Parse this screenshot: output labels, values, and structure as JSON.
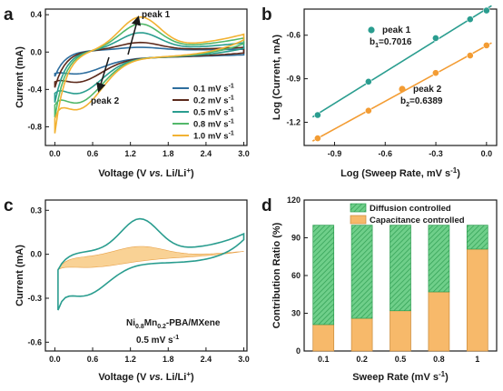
{
  "panels": {
    "a": {
      "letter": "a"
    },
    "b": {
      "letter": "b"
    },
    "c": {
      "letter": "c"
    },
    "d": {
      "letter": "d"
    }
  },
  "chart_data": [
    {
      "id": "a",
      "type": "line",
      "xlabel_pre": "Voltage (V ",
      "xlabel_vs": "vs.",
      "xlabel_post": " Li/Li",
      "xlabel_sup": "+",
      "xlabel_close": ")",
      "ylabel": "Current (mA)",
      "xlim": [
        -0.15,
        3.05
      ],
      "ylim": [
        -1.0,
        0.46
      ],
      "xticks": [
        "0.0",
        "0.6",
        "1.2",
        "1.8",
        "2.4",
        "3.0"
      ],
      "yticks": [
        "0.4",
        "0.0",
        "-0.4",
        "-0.8"
      ],
      "legend_position": "bottom-right",
      "annotations": [
        {
          "text": "peak 1"
        },
        {
          "text": "peak 2"
        }
      ],
      "series": [
        {
          "name": "0.1 mV s",
          "sup": "-1",
          "color": "#2e6e9e",
          "peak_ox": 0.05,
          "peak_red": -0.24,
          "end_high": 0.03,
          "start_low": -0.28
        },
        {
          "name": "0.2 mV s",
          "sup": "-1",
          "color": "#5c2a1c",
          "peak_ox": 0.1,
          "peak_red": -0.33,
          "end_high": 0.05,
          "start_low": -0.4
        },
        {
          "name": "0.5 mV s",
          "sup": "-1",
          "color": "#2a9d8f",
          "peak_ox": 0.2,
          "peak_red": -0.45,
          "end_high": 0.1,
          "start_low": -0.56
        },
        {
          "name": "0.8 mV s",
          "sup": "-1",
          "color": "#52b86a",
          "peak_ox": 0.29,
          "peak_red": -0.55,
          "end_high": 0.15,
          "start_low": -0.72
        },
        {
          "name": "1.0 mV s",
          "sup": "-1",
          "color": "#f2b233",
          "peak_ox": 0.36,
          "peak_red": -0.62,
          "end_high": 0.19,
          "start_low": -0.89
        }
      ]
    },
    {
      "id": "b",
      "type": "scatter",
      "xlabel": "Log (Sweep Rate, mV s",
      "xlabel_sup": "-1",
      "xlabel_close": ")",
      "ylabel": "Log (Current, mA)",
      "xlim": [
        -1.08,
        0.06
      ],
      "ylim": [
        -1.36,
        -0.42
      ],
      "xticks": [
        "-0.9",
        "-0.6",
        "-0.3",
        "0.0"
      ],
      "yticks": [
        "-0.6",
        "-0.9",
        "-1.2"
      ],
      "series": [
        {
          "name": "peak 1",
          "color": "#2a9d8f",
          "b_label": "b",
          "b_sub": "1",
          "b_value": "=0.7016",
          "x": [
            -1.0,
            -0.699,
            -0.301,
            -0.097,
            0.0
          ],
          "y": [
            -1.15,
            -0.92,
            -0.62,
            -0.49,
            -0.43
          ]
        },
        {
          "name": "peak 2",
          "color": "#f39c33",
          "b_label": "b",
          "b_sub": "2",
          "b_value": "=0.6389",
          "x": [
            -1.0,
            -0.699,
            -0.301,
            -0.097,
            0.0
          ],
          "y": [
            -1.31,
            -1.12,
            -0.86,
            -0.74,
            -0.67
          ]
        }
      ]
    },
    {
      "id": "c",
      "type": "line",
      "xlabel_pre": "Voltage (V ",
      "xlabel_vs": "vs.",
      "xlabel_post": " Li/Li",
      "xlabel_sup": "+",
      "xlabel_close": ")",
      "ylabel": "Current (mA)",
      "xlim": [
        -0.15,
        3.05
      ],
      "ylim": [
        -0.66,
        0.37
      ],
      "xticks": [
        "0.0",
        "0.6",
        "1.2",
        "1.8",
        "2.4",
        "3.0"
      ],
      "yticks": [
        "0.3",
        "0.0",
        "-0.3",
        "-0.6"
      ],
      "label_material_pre": "Ni",
      "label_material_sub1": "0.8",
      "label_material_mid": "Mn",
      "label_material_sub2": "0.2",
      "label_material_post": "-PBA/MXene",
      "label_rate": "0.5 mV s",
      "label_rate_sup": "-1",
      "cv_color": "#2a9d8f",
      "fill_color": "#f7c77a"
    },
    {
      "id": "d",
      "type": "bar",
      "xlabel": "Sweep Rate (mV s",
      "xlabel_sup": "-1",
      "xlabel_close": ")",
      "ylabel": "Contribution Ratio (%)",
      "ylim": [
        0,
        120
      ],
      "yticks": [
        "0",
        "30",
        "60",
        "90",
        "120"
      ],
      "categories": [
        "0.1",
        "0.2",
        "0.5",
        "0.8",
        "1"
      ],
      "series": [
        {
          "name": "Capacitance controlled",
          "color": "#f7b96a",
          "values": [
            21,
            26,
            32,
            47,
            81
          ]
        },
        {
          "name": "Diffusion controlled",
          "color": "#5cc47a",
          "values": [
            79,
            74,
            68,
            53,
            19
          ]
        }
      ],
      "legend_position": "top"
    }
  ]
}
